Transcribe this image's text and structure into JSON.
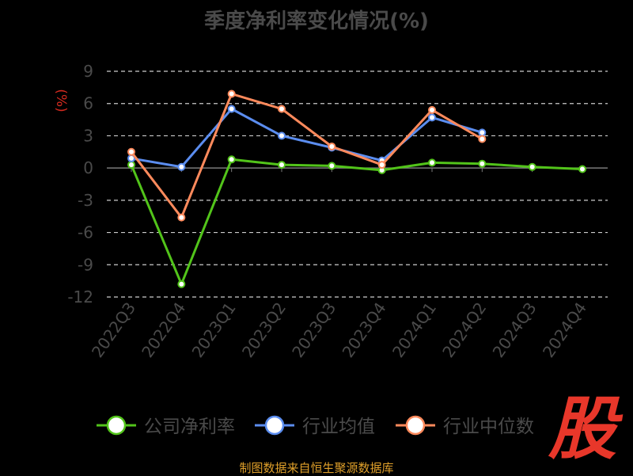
{
  "chart_data": {
    "type": "line",
    "title": "季度净利率变化情况(%)",
    "ylabel": "(%)",
    "xlabel": "",
    "categories": [
      "2022Q3",
      "2022Q4",
      "2023Q1",
      "2023Q2",
      "2023Q3",
      "2023Q4",
      "2024Q1",
      "2024Q2",
      "2024Q3",
      "2024Q4"
    ],
    "ylim": [
      -12,
      9
    ],
    "yticks": [
      9,
      6,
      3,
      0,
      -3,
      -6,
      -9,
      -12
    ],
    "grid": true,
    "legend_position": "bottom",
    "series": [
      {
        "name": "公司净利率",
        "color": "#52c41a",
        "values": [
          0.3,
          -10.8,
          0.8,
          0.3,
          0.2,
          -0.2,
          0.5,
          0.4,
          0.1,
          -0.1
        ]
      },
      {
        "name": "行业均值",
        "color": "#5b8def",
        "values": [
          0.9,
          0.1,
          5.5,
          3.0,
          1.9,
          0.7,
          4.7,
          3.3,
          null,
          null
        ]
      },
      {
        "name": "行业中位数",
        "color": "#ff8a5c",
        "values": [
          1.5,
          -4.6,
          6.9,
          5.5,
          2.0,
          0.3,
          5.4,
          2.7,
          null,
          null
        ]
      }
    ]
  },
  "footer": {
    "source": "制图数据来自恒生聚源数据库"
  },
  "brand": {
    "logo_text": "股"
  }
}
